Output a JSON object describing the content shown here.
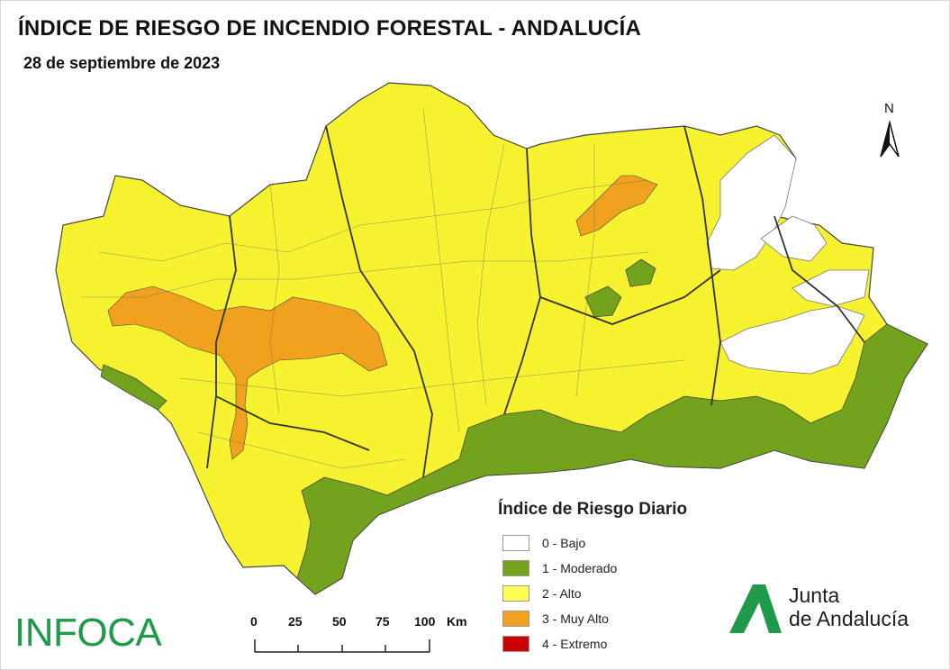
{
  "title": "ÍNDICE DE RIESGO DE INCENDIO FORESTAL - ANDALUCÍA",
  "date": "28 de septiembre de 2023",
  "north_label": "N",
  "legend": {
    "title": "Índice de Riesgo Diario",
    "items": [
      {
        "label": "0 - Bajo",
        "color": "#ffffff"
      },
      {
        "label": "1 - Moderado",
        "color": "#73a31d"
      },
      {
        "label": "2 - Alto",
        "color": "#fdfd55"
      },
      {
        "label": "3 - Muy Alto",
        "color": "#f0a21f"
      },
      {
        "label": "4 - Extremo",
        "color": "#cc0000"
      }
    ]
  },
  "scale_bar": {
    "ticks": [
      "0",
      "25",
      "50",
      "75",
      "100"
    ],
    "unit": "Km"
  },
  "brand_left": "INFOCA",
  "brand_right": {
    "line1": "Junta",
    "line2": "de Andalucía"
  },
  "colors": {
    "region_fill": "#f6f230",
    "border": "#555555",
    "infoca": "#1f9a4a"
  }
}
